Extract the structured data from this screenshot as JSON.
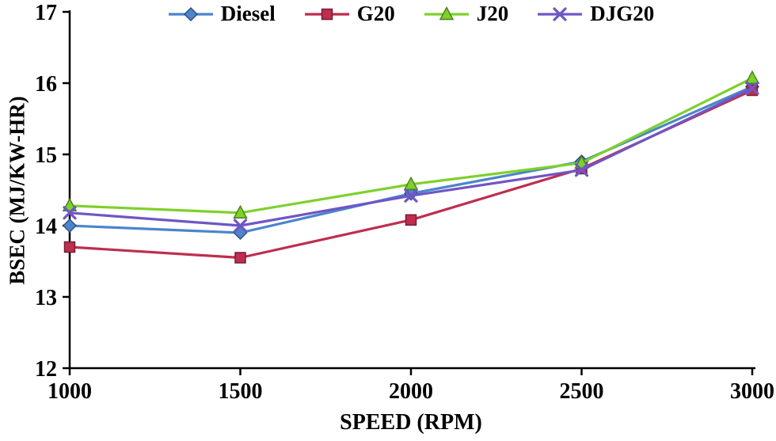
{
  "chart_data": {
    "type": "line",
    "title": "",
    "xlabel": "SPEED (RPM)",
    "ylabel": "BSEC (MJ/KW-HR)",
    "x": [
      1000,
      1500,
      2000,
      2500,
      3000
    ],
    "xticks": [
      "1000",
      "1500",
      "2000",
      "2500",
      "3000"
    ],
    "yticks": [
      "12",
      "13",
      "14",
      "15",
      "16",
      "17"
    ],
    "xlim": [
      1000,
      3000
    ],
    "ylim": [
      12,
      17
    ],
    "grid": false,
    "legend_position": "top-center",
    "axis_color": "#000000",
    "series": [
      {
        "name": "Diesel",
        "marker": "diamond",
        "color": "#4b85cc",
        "values": [
          14.0,
          13.9,
          14.45,
          14.9,
          15.95
        ]
      },
      {
        "name": "G20",
        "marker": "square",
        "color": "#be2e4e",
        "values": [
          13.7,
          13.55,
          14.08,
          14.8,
          15.9
        ]
      },
      {
        "name": "J20",
        "marker": "triangle",
        "color": "#7ed02c",
        "values": [
          14.28,
          14.18,
          14.58,
          14.88,
          16.07
        ]
      },
      {
        "name": "DJG20",
        "marker": "x",
        "color": "#6f56c5",
        "values": [
          14.18,
          14.0,
          14.42,
          14.78,
          15.93
        ]
      }
    ]
  }
}
